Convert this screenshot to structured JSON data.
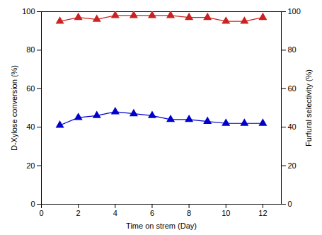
{
  "chart_data": {
    "type": "line",
    "xlabel": "Time on strem (Day)",
    "ylabel": "D-Xylose conversion (%)",
    "y2label": "Furfural selectivity (%)",
    "x": [
      1,
      2,
      3,
      4,
      5,
      6,
      7,
      8,
      9,
      10,
      11,
      12
    ],
    "xlim": [
      0,
      13
    ],
    "xticks": [
      0,
      2,
      4,
      6,
      8,
      10,
      12
    ],
    "ylim": [
      0,
      100
    ],
    "yticks": [
      0,
      20,
      40,
      60,
      80,
      100
    ],
    "y2lim": [
      0,
      100
    ],
    "y2ticks": [
      0,
      20,
      40,
      60,
      80,
      100
    ],
    "grid": false,
    "series": [
      {
        "color": "#0000cc",
        "marker": "triangle",
        "values": [
          41,
          45,
          46,
          48,
          47,
          46,
          44,
          44,
          43,
          42,
          42,
          42
        ]
      },
      {
        "color": "#cc2222",
        "marker": "triangle",
        "axis": "y2",
        "values": [
          95,
          97,
          96,
          98,
          98,
          98,
          98,
          97,
          97,
          95,
          95,
          97
        ]
      }
    ]
  }
}
